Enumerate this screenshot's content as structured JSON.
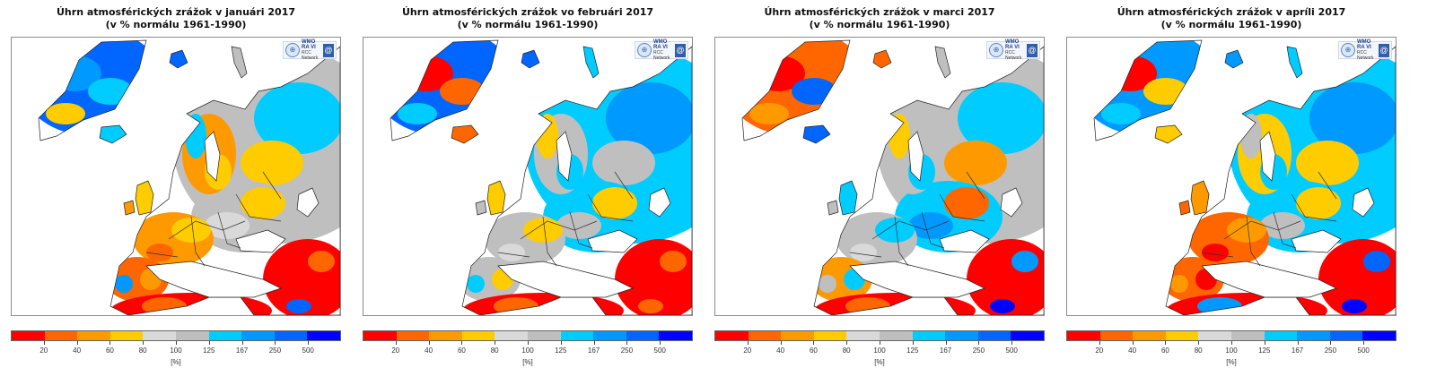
{
  "panels": [
    {
      "title_line1": "Úhrn atmosférických zrážok v januári 2017",
      "title_line2": "(v % normálu 1961-1990)",
      "month": "january",
      "regions": {
        "greenland": [
          "#0066ff",
          "#0099ff",
          "#00ccff",
          "#ffcc00"
        ],
        "scandinavia": [
          "#ff9900",
          "#ffcc00",
          "#00ccff"
        ],
        "west_europe": [
          "#ff9900",
          "#ffcc00",
          "#ff6600"
        ],
        "iberia": [
          "#ff6600",
          "#ff9900",
          "#0099ff"
        ],
        "east_europe": [
          "#bfbfbf",
          "#d9d9d9",
          "#ffcc00",
          "#00ccff"
        ],
        "russia_ne": [
          "#bfbfbf",
          "#00ccff",
          "#ffcc00"
        ],
        "north_africa": [
          "#ff0000",
          "#ff6600",
          "#0066ff"
        ],
        "middle_east": [
          "#ff0000",
          "#ff6600"
        ]
      }
    },
    {
      "title_line1": "Úhrn atmosférických zrážok vo februári 2017",
      "title_line2": "(v % normálu 1961-1990)",
      "month": "february",
      "regions": {
        "greenland": [
          "#0066ff",
          "#ff0000",
          "#ff6600",
          "#00ccff"
        ],
        "scandinavia": [
          "#bfbfbf",
          "#00ccff",
          "#ffcc00"
        ],
        "west_europe": [
          "#bfbfbf",
          "#ffcc00",
          "#d9d9d9"
        ],
        "iberia": [
          "#bfbfbf",
          "#ffcc00",
          "#00ccff"
        ],
        "east_europe": [
          "#00ccff",
          "#bfbfbf",
          "#ffcc00"
        ],
        "russia_ne": [
          "#00ccff",
          "#0099ff",
          "#bfbfbf"
        ],
        "north_africa": [
          "#ff0000",
          "#ff6600"
        ],
        "middle_east": [
          "#ff0000",
          "#ff6600"
        ]
      }
    },
    {
      "title_line1": "Úhrn atmosférických zrážok v marci 2017",
      "title_line2": "(v % normálu 1961-1990)",
      "month": "march",
      "regions": {
        "greenland": [
          "#ff6600",
          "#ff0000",
          "#0066ff",
          "#ff9900"
        ],
        "scandinavia": [
          "#bfbfbf",
          "#00ccff",
          "#ffcc00"
        ],
        "west_europe": [
          "#bfbfbf",
          "#00ccff",
          "#d9d9d9"
        ],
        "iberia": [
          "#ff9900",
          "#00ccff",
          "#bfbfbf"
        ],
        "east_europe": [
          "#00ccff",
          "#0099ff",
          "#ff6600",
          "#ffcc00"
        ],
        "russia_ne": [
          "#bfbfbf",
          "#00ccff",
          "#ff9900",
          "#ffcc00"
        ],
        "north_africa": [
          "#ff0000",
          "#ff6600",
          "#0000ff"
        ],
        "middle_east": [
          "#ff0000",
          "#0099ff"
        ]
      }
    },
    {
      "title_line1": "Úhrn atmosférických zrážok v apríli 2017",
      "title_line2": "(v % normálu 1961-1990)",
      "month": "april",
      "regions": {
        "greenland": [
          "#0099ff",
          "#ff0000",
          "#ffcc00",
          "#00ccff"
        ],
        "scandinavia": [
          "#ffcc00",
          "#00ccff",
          "#bfbfbf"
        ],
        "west_europe": [
          "#ff6600",
          "#ff9900",
          "#ff0000"
        ],
        "iberia": [
          "#ff6600",
          "#ff0000",
          "#ff9900"
        ],
        "east_europe": [
          "#00ccff",
          "#bfbfbf",
          "#ffcc00"
        ],
        "russia_ne": [
          "#00ccff",
          "#0099ff",
          "#ffcc00"
        ],
        "north_africa": [
          "#ff0000",
          "#0099ff",
          "#0000ff"
        ],
        "middle_east": [
          "#ff0000",
          "#0066ff"
        ]
      }
    }
  ],
  "logo": {
    "line1": "WMO RA VI",
    "line2": "RCC Network"
  },
  "legend": {
    "colors": [
      "#ff0000",
      "#ff6600",
      "#ff9900",
      "#ffcc00",
      "#d9d9d9",
      "#bfbfbf",
      "#00ccff",
      "#0099ff",
      "#0066ff",
      "#0000ff"
    ],
    "tick_labels": [
      "20",
      "40",
      "60",
      "80",
      "100",
      "125",
      "167",
      "250",
      "500"
    ],
    "unit": "[%]"
  }
}
